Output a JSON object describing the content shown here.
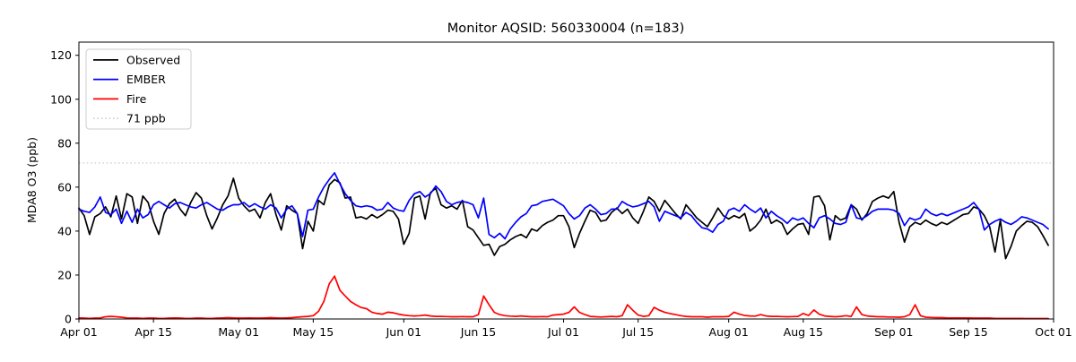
{
  "title": "Monitor AQSID: 560330004 (n=183)",
  "chart_data": {
    "type": "line",
    "title": "Monitor AQSID: 560330004 (n=183)",
    "xlabel": "",
    "ylabel": "MDA8 O3 (ppb)",
    "ylim": [
      0,
      126
    ],
    "y_ticks": [
      0,
      20,
      40,
      60,
      80,
      100,
      120
    ],
    "x_tick_labels": [
      "Apr 01",
      "Apr 15",
      "May 01",
      "May 15",
      "Jun 01",
      "Jun 15",
      "Jul 01",
      "Jul 15",
      "Aug 01",
      "Aug 15",
      "Sep 01",
      "Sep 15",
      "Oct 01"
    ],
    "x_tick_days": [
      0,
      14,
      30,
      44,
      61,
      75,
      91,
      105,
      122,
      136,
      153,
      167,
      183
    ],
    "n_days": 183,
    "x_start_label": "Apr 01",
    "x_end_label": "Oct 01",
    "grid": false,
    "legend_position": "upper left",
    "threshold": {
      "label": "71 ppb",
      "value": 71,
      "color": "#d3d3d3",
      "style": "dotted"
    },
    "series": [
      {
        "name": "Observed",
        "color": "#000000",
        "values": [
          50.5,
          47,
          38.5,
          46.5,
          48,
          51,
          46.5,
          56,
          45.5,
          57,
          55.5,
          43.5,
          56,
          53,
          44.5,
          38.5,
          48,
          52.5,
          54.5,
          50,
          47,
          53,
          57.5,
          55,
          47,
          41,
          46,
          52,
          56,
          64,
          55,
          51.5,
          49,
          50,
          46,
          53,
          57,
          47.5,
          40.5,
          51.5,
          49.5,
          48,
          32,
          44.5,
          40,
          54,
          52,
          61,
          63.5,
          62,
          55,
          55.5,
          46,
          46.5,
          45.5,
          47.5,
          46,
          47.5,
          49.5,
          49,
          45.5,
          34,
          39,
          55,
          56,
          45.5,
          57.5,
          59.5,
          52,
          50.5,
          51.5,
          50,
          54,
          42,
          40.5,
          37,
          33.5,
          34,
          29,
          33,
          34,
          36,
          37.5,
          38.5,
          37,
          41,
          40,
          42.5,
          44,
          45,
          47,
          47,
          42,
          32.5,
          39,
          44.5,
          49.5,
          48.5,
          44.5,
          45,
          48.5,
          50.5,
          48,
          50,
          46,
          43.5,
          49,
          55.5,
          53.5,
          49,
          54,
          51,
          48,
          45.5,
          52,
          49,
          46,
          44,
          42,
          46,
          50.5,
          47,
          45.5,
          47,
          46,
          48,
          40,
          42,
          45,
          50,
          43.5,
          45,
          43.5,
          38.5,
          41,
          43,
          43.5,
          38.5,
          55.5,
          56,
          51.5,
          36,
          47,
          45,
          46,
          52,
          50,
          45,
          48,
          53.5,
          55,
          56,
          55,
          58,
          44,
          35,
          42,
          44,
          43,
          45,
          43.5,
          42.5,
          44,
          43,
          44.5,
          46,
          47.5,
          48,
          51,
          50,
          47,
          42,
          30.5,
          45,
          27.5,
          33,
          40,
          42.5,
          44.5,
          44,
          42,
          38,
          33.5
        ]
      },
      {
        "name": "EMBER",
        "color": "#0000ff",
        "values": [
          50,
          49,
          48.5,
          51,
          55.5,
          48.5,
          47.5,
          50,
          43.5,
          49,
          44,
          50,
          46,
          47.5,
          52,
          53.5,
          52,
          50.5,
          52.5,
          53,
          52,
          51,
          50.5,
          52,
          53,
          51.5,
          50,
          49.5,
          51,
          52,
          52,
          53,
          51,
          52.5,
          51,
          50,
          52,
          50.5,
          46,
          50,
          51.5,
          48,
          37.5,
          49.5,
          50,
          55.5,
          60,
          63.5,
          66.5,
          61.5,
          57,
          54,
          51.5,
          51,
          51.5,
          51,
          49.5,
          50,
          53,
          50.5,
          49.5,
          49,
          54,
          57,
          58,
          55.5,
          57,
          60.5,
          58,
          53.5,
          52,
          53,
          53.5,
          53,
          52,
          46,
          55,
          38.5,
          37,
          39,
          36.5,
          41,
          44,
          46.5,
          48,
          51.5,
          52,
          53.5,
          54,
          54.5,
          53,
          51.5,
          48,
          45.5,
          47,
          50.5,
          52,
          50,
          47.5,
          48,
          50,
          50,
          53.5,
          52,
          51,
          51.5,
          52.5,
          53.5,
          51,
          44.5,
          49,
          48,
          47,
          46,
          48.5,
          47,
          44,
          41.5,
          41,
          39.5,
          43,
          44.5,
          49.5,
          50.5,
          49,
          52,
          50,
          48.5,
          50.5,
          46,
          49,
          47,
          45.5,
          43.5,
          46,
          45,
          46,
          43.5,
          41.5,
          46,
          47,
          45.5,
          43.5,
          43,
          44,
          52,
          46,
          45.5,
          47,
          49,
          50,
          50,
          50,
          49.5,
          48,
          42.5,
          46,
          45,
          46,
          50,
          48,
          47,
          48,
          47,
          48,
          49,
          50,
          51,
          53,
          50,
          40.5,
          43,
          44.5,
          45.5,
          44,
          43,
          44.5,
          46.5,
          46,
          45,
          44,
          43,
          41
        ]
      },
      {
        "name": "Fire",
        "color": "#ff0000",
        "values": [
          0.5,
          0.4,
          0.3,
          0.4,
          0.5,
          1,
          1.2,
          1,
          0.8,
          0.5,
          0.4,
          0.4,
          0.3,
          0.4,
          0.4,
          0.3,
          0.3,
          0.4,
          0.5,
          0.4,
          0.3,
          0.3,
          0.4,
          0.4,
          0.3,
          0.3,
          0.4,
          0.5,
          0.6,
          0.5,
          0.4,
          0.4,
          0.5,
          0.4,
          0.4,
          0.5,
          0.6,
          0.5,
          0.4,
          0.5,
          0.6,
          0.8,
          1,
          1.2,
          1.5,
          3.5,
          8,
          16,
          19.5,
          13,
          10.5,
          8,
          6.5,
          5.2,
          4.7,
          3.1,
          2.5,
          2.2,
          3.1,
          2.8,
          2.2,
          1.8,
          1.5,
          1.4,
          1.5,
          1.8,
          1.4,
          1.2,
          1.2,
          1.1,
          1,
          1,
          1.1,
          1,
          1,
          2,
          10.5,
          6.5,
          3,
          2,
          1.5,
          1.3,
          1.2,
          1.4,
          1.2,
          1,
          1,
          1.1,
          1,
          1.8,
          2,
          2.2,
          3,
          5.5,
          3,
          2,
          1.2,
          1,
          0.9,
          1,
          1.2,
          1,
          1.5,
          6.5,
          4,
          1.8,
          1.2,
          1.5,
          5.3,
          4,
          3,
          2.5,
          2,
          1.5,
          1.2,
          1,
          1,
          1,
          0.8,
          1,
          1,
          1,
          1.2,
          3.1,
          2.2,
          1.6,
          1.4,
          1.3,
          2,
          1.4,
          1.2,
          1.2,
          1.1,
          1,
          1.1,
          1.2,
          2.5,
          1.6,
          4.1,
          2.2,
          1.4,
          1.2,
          1,
          1.2,
          1.5,
          1.2,
          5.5,
          2,
          1.4,
          1.2,
          1,
          1,
          0.9,
          0.9,
          0.8,
          1,
          2,
          6.5,
          1.5,
          0.8,
          0.7,
          0.6,
          0.6,
          0.5,
          0.5,
          0.5,
          0.5,
          0.5,
          0.4,
          0.4,
          0.4,
          0.4,
          0.3,
          0.3,
          0.3,
          0.3,
          0.3,
          0.3,
          0.2,
          0.2,
          0.2,
          0.2,
          0.2
        ]
      }
    ]
  },
  "legend": {
    "entries": [
      {
        "label": "Observed",
        "color": "#000000",
        "style": "solid"
      },
      {
        "label": "EMBER",
        "color": "#0000ff",
        "style": "solid"
      },
      {
        "label": "Fire",
        "color": "#ff0000",
        "style": "solid"
      },
      {
        "label": "71 ppb",
        "color": "#d3d3d3",
        "style": "dotted"
      }
    ],
    "border_color": "#cccccc"
  }
}
